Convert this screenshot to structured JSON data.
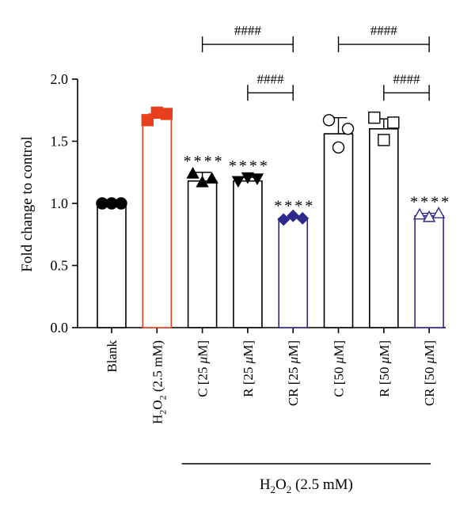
{
  "chart_data": {
    "type": "bar",
    "ylabel": "Fold change to control",
    "ylim": [
      0,
      2.0
    ],
    "yticks": [
      "0.0",
      "0.5",
      "1.0",
      "1.5",
      "2.0"
    ],
    "categories": [
      {
        "pre": "Blank",
        "sub": "",
        "post": "",
        "value": 1.0,
        "err": 0.0,
        "color": "#000000",
        "marker": "circle",
        "filled": true,
        "points": [
          1.0,
          1.0,
          1.0
        ],
        "sig": ""
      },
      {
        "pre": "H",
        "sub": "2",
        "pre2": "O",
        "sub2": "2",
        "post": " (2.5 mM)",
        "value": 1.7,
        "err": 0.02,
        "color": "#e8401c",
        "marker": "square",
        "filled": true,
        "points": [
          1.67,
          1.73,
          1.72
        ],
        "sig": ""
      },
      {
        "pre": "C [25 ",
        "mu": "μ",
        "post": "M]",
        "value": 1.18,
        "err": 0.07,
        "color": "#000000",
        "marker": "triangle-up",
        "filled": true,
        "points": [
          1.24,
          1.17,
          1.2
        ],
        "sig": "****"
      },
      {
        "pre": "R [25 ",
        "mu": "μ",
        "post": "M]",
        "value": 1.18,
        "err": 0.03,
        "color": "#000000",
        "marker": "triangle-down",
        "filled": true,
        "points": [
          1.18,
          1.21,
          1.2
        ],
        "sig": "****"
      },
      {
        "pre": "CR [25 ",
        "mu": "μ",
        "post": "M]",
        "value": 0.88,
        "err": 0.01,
        "color": "#2e2a8c",
        "marker": "diamond",
        "filled": true,
        "points": [
          0.87,
          0.9,
          0.88
        ],
        "sig": "****"
      },
      {
        "pre": "C [50 ",
        "mu": "μ",
        "post": "M]",
        "value": 1.56,
        "err": 0.13,
        "color": "#000000",
        "marker": "circle",
        "filled": false,
        "points": [
          1.67,
          1.45,
          1.6
        ],
        "sig": ""
      },
      {
        "pre": "R [50 ",
        "mu": "μ",
        "post": "M]",
        "value": 1.6,
        "err": 0.08,
        "color": "#000000",
        "marker": "square",
        "filled": false,
        "points": [
          1.69,
          1.51,
          1.65
        ],
        "sig": ""
      },
      {
        "pre": "CR [50 ",
        "mu": "μ",
        "post": "M]",
        "value": 0.9,
        "err": 0.02,
        "color": "#2e2a8c",
        "marker": "triangle-up",
        "filled": false,
        "points": [
          0.91,
          0.89,
          0.92
        ],
        "sig": "****"
      }
    ],
    "comparisons": [
      {
        "from": 2,
        "to": 4,
        "level": 2.28,
        "label": "####"
      },
      {
        "from": 3,
        "to": 4,
        "level": 1.89,
        "label": "####"
      },
      {
        "from": 5,
        "to": 7,
        "level": 2.28,
        "label": "####"
      },
      {
        "from": 6,
        "to": 7,
        "level": 1.89,
        "label": "####"
      }
    ],
    "group_label": {
      "pre": "H",
      "sub": "2",
      "pre2": "O",
      "sub2": "2",
      "post": " (2.5 mM)",
      "from": 2,
      "to": 7
    }
  }
}
